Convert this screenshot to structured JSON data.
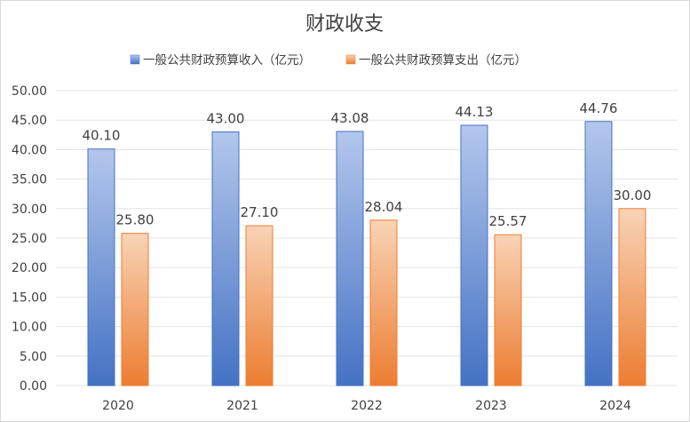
{
  "chart_data": {
    "type": "bar",
    "title": "财政收支",
    "categories": [
      "2020",
      "2021",
      "2022",
      "2023",
      "2024"
    ],
    "series": [
      {
        "name": "一般公共财政预算收入（亿元）",
        "values": [
          40.1,
          43.0,
          43.08,
          44.13,
          44.76
        ],
        "color": "#4472C4"
      },
      {
        "name": "一般公共财政预算支出（亿元）",
        "values": [
          25.8,
          27.1,
          28.04,
          25.57,
          30.0
        ],
        "color": "#ED7D31"
      }
    ],
    "data_labels": [
      [
        "40.10",
        "43.00",
        "43.08",
        "44.13",
        "44.76"
      ],
      [
        "25.80",
        "27.10",
        "28.04",
        "25.57",
        "30.00"
      ]
    ],
    "y_ticks": [
      "0.00",
      "5.00",
      "10.00",
      "15.00",
      "20.00",
      "25.00",
      "30.00",
      "35.00",
      "40.00",
      "45.00",
      "50.00"
    ],
    "ylim": [
      0,
      50
    ],
    "grid": true,
    "legend_position": "top"
  }
}
